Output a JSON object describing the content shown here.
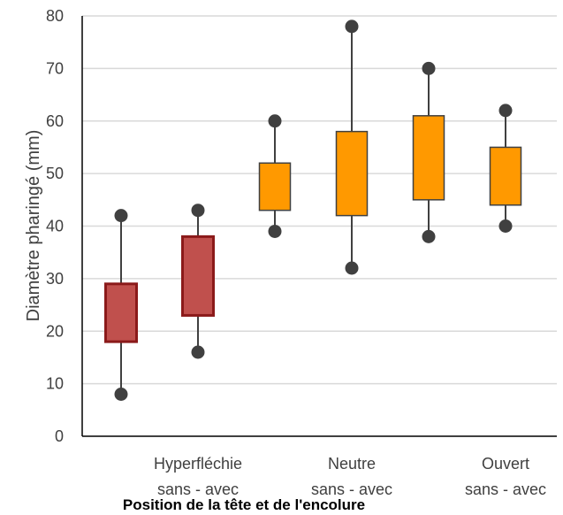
{
  "chart_data": {
    "type": "boxplot",
    "xlabel": "Position de la tête et de l'encolure",
    "ylabel": "Diamètre pharingé (mm)",
    "ylim": [
      0,
      80
    ],
    "yticks": [
      0,
      10,
      20,
      30,
      40,
      50,
      60,
      70,
      80
    ],
    "grid": true,
    "groups": [
      {
        "label": "Hyperfléchie",
        "sublabel": "sans - avec"
      },
      {
        "label": "Neutre",
        "sublabel": "sans - avec"
      },
      {
        "label": "Ouvert",
        "sublabel": "sans - avec"
      }
    ],
    "boxes": [
      {
        "group": 0,
        "condition": "sans",
        "min": 8,
        "q1": 18,
        "q3": 29,
        "max": 42,
        "color": "#C0504D"
      },
      {
        "group": 0,
        "condition": "avec",
        "min": 16,
        "q1": 23,
        "q3": 38,
        "max": 43,
        "color": "#C0504D"
      },
      {
        "group": 1,
        "condition": "sans",
        "min": 39,
        "q1": 43,
        "q3": 52,
        "max": 60,
        "color": "#FF9900"
      },
      {
        "group": 1,
        "condition": "avec",
        "min": 32,
        "q1": 42,
        "q3": 58,
        "max": 78,
        "color": "#FF9900"
      },
      {
        "group": 2,
        "condition": "sans",
        "min": 38,
        "q1": 45,
        "q3": 61,
        "max": 70,
        "color": "#FF9900"
      },
      {
        "group": 2,
        "condition": "avec",
        "min": 40,
        "q1": 44,
        "q3": 55,
        "max": 62,
        "color": "#FF9900"
      }
    ]
  }
}
